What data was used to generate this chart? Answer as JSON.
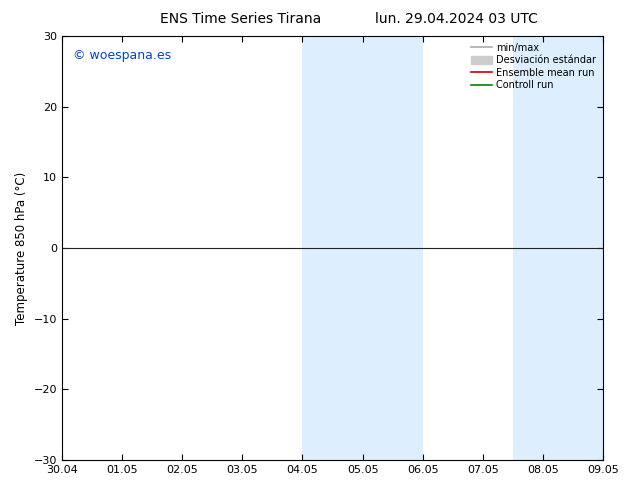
{
  "title_left": "ENS Time Series Tirana",
  "title_right": "lun. 29.04.2024 03 UTC",
  "ylabel": "Temperature 850 hPa (°C)",
  "watermark": "© woespana.es",
  "ylim": [
    -30,
    30
  ],
  "yticks": [
    -30,
    -20,
    -10,
    0,
    10,
    20,
    30
  ],
  "x_labels": [
    "30.04",
    "01.05",
    "02.05",
    "03.05",
    "04.05",
    "05.05",
    "06.05",
    "07.05",
    "08.05",
    "09.05"
  ],
  "x_values": [
    0,
    1,
    2,
    3,
    4,
    5,
    6,
    7,
    8,
    9
  ],
  "shaded_regions": [
    {
      "xmin": 4,
      "xmax": 6
    },
    {
      "xmin": 7.5,
      "xmax": 9
    }
  ],
  "shaded_color": "#ddeeff",
  "zero_line_color": "#222222",
  "control_run_color": "#008800",
  "ensemble_mean_color": "#cc0000",
  "legend_minmax_color": "#aaaaaa",
  "legend_band_color": "#cccccc",
  "bg_color": "#ffffff",
  "plot_bg_color": "#ffffff",
  "border_color": "#000000",
  "title_fontsize": 10,
  "label_fontsize": 8.5,
  "tick_fontsize": 8,
  "legend_fontsize": 7,
  "watermark_color": "#0044cc",
  "watermark_fontsize": 9
}
